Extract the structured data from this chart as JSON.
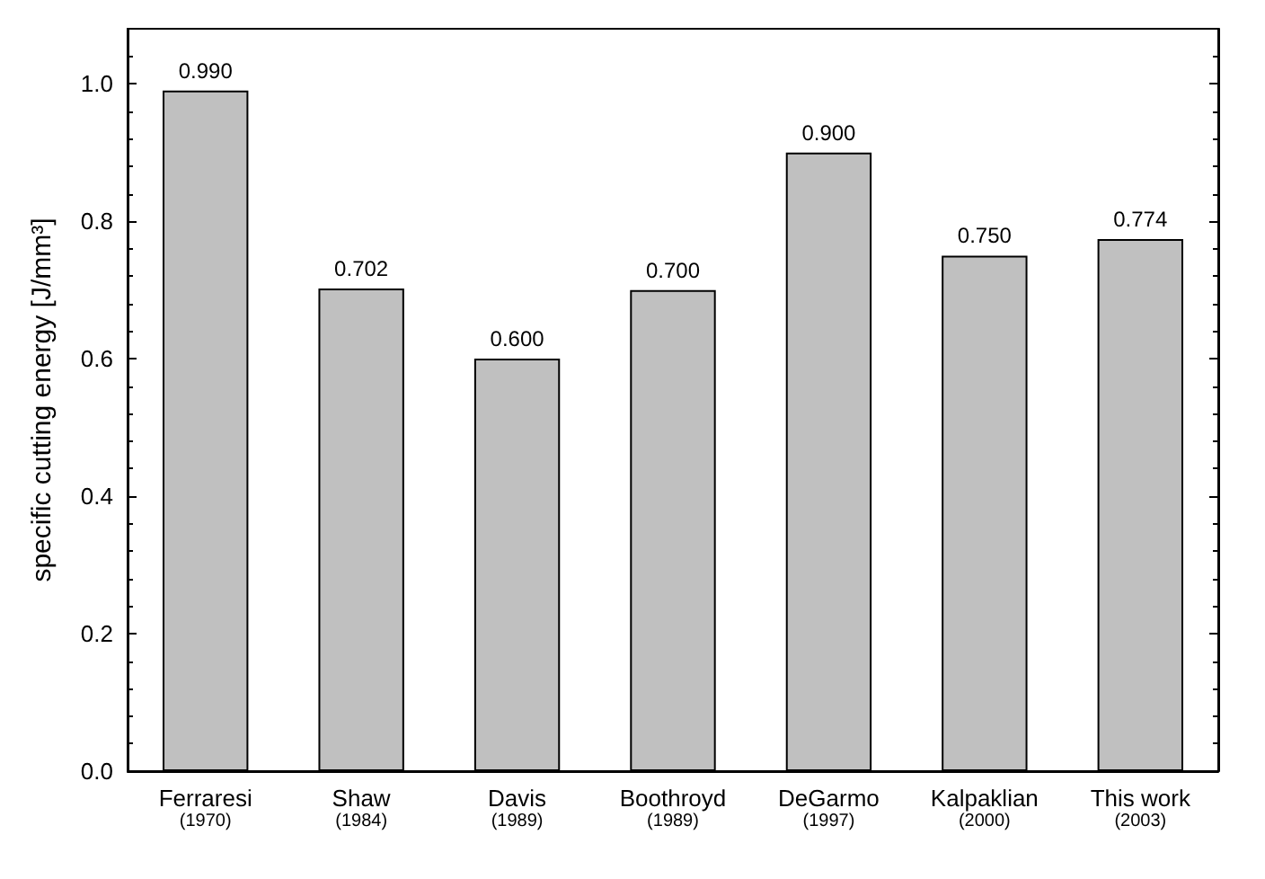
{
  "chart_data": {
    "type": "bar",
    "ylabel": "specific cutting energy [J/mm³]",
    "categories": [
      "Ferraresi\n(1970)",
      "Shaw\n(1984)",
      "Davis\n(1989)",
      "Boothroyd\n(1989)",
      "DeGarmo\n(1997)",
      "Kalpaklian\n(2000)",
      "This work\n(2003)"
    ],
    "values": [
      0.99,
      0.702,
      0.6,
      0.7,
      0.9,
      0.75,
      0.774
    ],
    "value_labels": [
      "0.990",
      "0.702",
      "0.600",
      "0.700",
      "0.900",
      "0.750",
      "0.774"
    ],
    "color": "#c0c0c0",
    "ylim": [
      0,
      1.08
    ],
    "yticks": [
      {
        "value": 0,
        "label": "0.0"
      },
      0.2,
      0.4,
      0.6,
      0.8,
      {
        "value": 1,
        "label": "1.0"
      }
    ],
    "grid": false
  }
}
